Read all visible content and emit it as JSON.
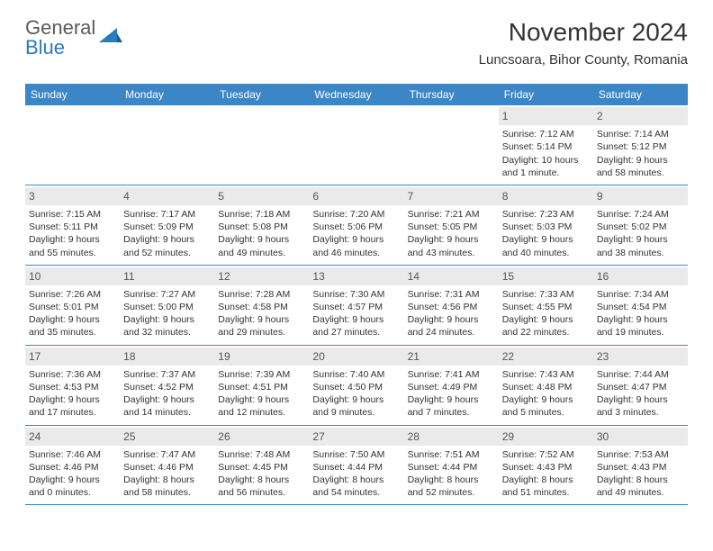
{
  "logo": {
    "word1": "General",
    "word2": "Blue"
  },
  "title": "November 2024",
  "location": "Luncsoara, Bihor County, Romania",
  "colors": {
    "header_bg": "#3b86c7",
    "header_text": "#ffffff",
    "daynum_bg": "#eaeaea",
    "row_border": "#3b86c7",
    "body_text": "#333333",
    "logo_gray": "#5a5a5a",
    "logo_blue": "#2b7bbf",
    "page_bg": "#ffffff"
  },
  "typography": {
    "title_fontsize": 28,
    "location_fontsize": 15,
    "dayhead_fontsize": 12,
    "cell_fontsize": 10.5,
    "logo_fontsize": 22
  },
  "day_headers": [
    "Sunday",
    "Monday",
    "Tuesday",
    "Wednesday",
    "Thursday",
    "Friday",
    "Saturday"
  ],
  "weeks": [
    [
      {
        "n": "",
        "sr": "",
        "ss": "",
        "dl1": "",
        "dl2": ""
      },
      {
        "n": "",
        "sr": "",
        "ss": "",
        "dl1": "",
        "dl2": ""
      },
      {
        "n": "",
        "sr": "",
        "ss": "",
        "dl1": "",
        "dl2": ""
      },
      {
        "n": "",
        "sr": "",
        "ss": "",
        "dl1": "",
        "dl2": ""
      },
      {
        "n": "",
        "sr": "",
        "ss": "",
        "dl1": "",
        "dl2": ""
      },
      {
        "n": "1",
        "sr": "Sunrise: 7:12 AM",
        "ss": "Sunset: 5:14 PM",
        "dl1": "Daylight: 10 hours",
        "dl2": "and 1 minute."
      },
      {
        "n": "2",
        "sr": "Sunrise: 7:14 AM",
        "ss": "Sunset: 5:12 PM",
        "dl1": "Daylight: 9 hours",
        "dl2": "and 58 minutes."
      }
    ],
    [
      {
        "n": "3",
        "sr": "Sunrise: 7:15 AM",
        "ss": "Sunset: 5:11 PM",
        "dl1": "Daylight: 9 hours",
        "dl2": "and 55 minutes."
      },
      {
        "n": "4",
        "sr": "Sunrise: 7:17 AM",
        "ss": "Sunset: 5:09 PM",
        "dl1": "Daylight: 9 hours",
        "dl2": "and 52 minutes."
      },
      {
        "n": "5",
        "sr": "Sunrise: 7:18 AM",
        "ss": "Sunset: 5:08 PM",
        "dl1": "Daylight: 9 hours",
        "dl2": "and 49 minutes."
      },
      {
        "n": "6",
        "sr": "Sunrise: 7:20 AM",
        "ss": "Sunset: 5:06 PM",
        "dl1": "Daylight: 9 hours",
        "dl2": "and 46 minutes."
      },
      {
        "n": "7",
        "sr": "Sunrise: 7:21 AM",
        "ss": "Sunset: 5:05 PM",
        "dl1": "Daylight: 9 hours",
        "dl2": "and 43 minutes."
      },
      {
        "n": "8",
        "sr": "Sunrise: 7:23 AM",
        "ss": "Sunset: 5:03 PM",
        "dl1": "Daylight: 9 hours",
        "dl2": "and 40 minutes."
      },
      {
        "n": "9",
        "sr": "Sunrise: 7:24 AM",
        "ss": "Sunset: 5:02 PM",
        "dl1": "Daylight: 9 hours",
        "dl2": "and 38 minutes."
      }
    ],
    [
      {
        "n": "10",
        "sr": "Sunrise: 7:26 AM",
        "ss": "Sunset: 5:01 PM",
        "dl1": "Daylight: 9 hours",
        "dl2": "and 35 minutes."
      },
      {
        "n": "11",
        "sr": "Sunrise: 7:27 AM",
        "ss": "Sunset: 5:00 PM",
        "dl1": "Daylight: 9 hours",
        "dl2": "and 32 minutes."
      },
      {
        "n": "12",
        "sr": "Sunrise: 7:28 AM",
        "ss": "Sunset: 4:58 PM",
        "dl1": "Daylight: 9 hours",
        "dl2": "and 29 minutes."
      },
      {
        "n": "13",
        "sr": "Sunrise: 7:30 AM",
        "ss": "Sunset: 4:57 PM",
        "dl1": "Daylight: 9 hours",
        "dl2": "and 27 minutes."
      },
      {
        "n": "14",
        "sr": "Sunrise: 7:31 AM",
        "ss": "Sunset: 4:56 PM",
        "dl1": "Daylight: 9 hours",
        "dl2": "and 24 minutes."
      },
      {
        "n": "15",
        "sr": "Sunrise: 7:33 AM",
        "ss": "Sunset: 4:55 PM",
        "dl1": "Daylight: 9 hours",
        "dl2": "and 22 minutes."
      },
      {
        "n": "16",
        "sr": "Sunrise: 7:34 AM",
        "ss": "Sunset: 4:54 PM",
        "dl1": "Daylight: 9 hours",
        "dl2": "and 19 minutes."
      }
    ],
    [
      {
        "n": "17",
        "sr": "Sunrise: 7:36 AM",
        "ss": "Sunset: 4:53 PM",
        "dl1": "Daylight: 9 hours",
        "dl2": "and 17 minutes."
      },
      {
        "n": "18",
        "sr": "Sunrise: 7:37 AM",
        "ss": "Sunset: 4:52 PM",
        "dl1": "Daylight: 9 hours",
        "dl2": "and 14 minutes."
      },
      {
        "n": "19",
        "sr": "Sunrise: 7:39 AM",
        "ss": "Sunset: 4:51 PM",
        "dl1": "Daylight: 9 hours",
        "dl2": "and 12 minutes."
      },
      {
        "n": "20",
        "sr": "Sunrise: 7:40 AM",
        "ss": "Sunset: 4:50 PM",
        "dl1": "Daylight: 9 hours",
        "dl2": "and 9 minutes."
      },
      {
        "n": "21",
        "sr": "Sunrise: 7:41 AM",
        "ss": "Sunset: 4:49 PM",
        "dl1": "Daylight: 9 hours",
        "dl2": "and 7 minutes."
      },
      {
        "n": "22",
        "sr": "Sunrise: 7:43 AM",
        "ss": "Sunset: 4:48 PM",
        "dl1": "Daylight: 9 hours",
        "dl2": "and 5 minutes."
      },
      {
        "n": "23",
        "sr": "Sunrise: 7:44 AM",
        "ss": "Sunset: 4:47 PM",
        "dl1": "Daylight: 9 hours",
        "dl2": "and 3 minutes."
      }
    ],
    [
      {
        "n": "24",
        "sr": "Sunrise: 7:46 AM",
        "ss": "Sunset: 4:46 PM",
        "dl1": "Daylight: 9 hours",
        "dl2": "and 0 minutes."
      },
      {
        "n": "25",
        "sr": "Sunrise: 7:47 AM",
        "ss": "Sunset: 4:46 PM",
        "dl1": "Daylight: 8 hours",
        "dl2": "and 58 minutes."
      },
      {
        "n": "26",
        "sr": "Sunrise: 7:48 AM",
        "ss": "Sunset: 4:45 PM",
        "dl1": "Daylight: 8 hours",
        "dl2": "and 56 minutes."
      },
      {
        "n": "27",
        "sr": "Sunrise: 7:50 AM",
        "ss": "Sunset: 4:44 PM",
        "dl1": "Daylight: 8 hours",
        "dl2": "and 54 minutes."
      },
      {
        "n": "28",
        "sr": "Sunrise: 7:51 AM",
        "ss": "Sunset: 4:44 PM",
        "dl1": "Daylight: 8 hours",
        "dl2": "and 52 minutes."
      },
      {
        "n": "29",
        "sr": "Sunrise: 7:52 AM",
        "ss": "Sunset: 4:43 PM",
        "dl1": "Daylight: 8 hours",
        "dl2": "and 51 minutes."
      },
      {
        "n": "30",
        "sr": "Sunrise: 7:53 AM",
        "ss": "Sunset: 4:43 PM",
        "dl1": "Daylight: 8 hours",
        "dl2": "and 49 minutes."
      }
    ]
  ]
}
